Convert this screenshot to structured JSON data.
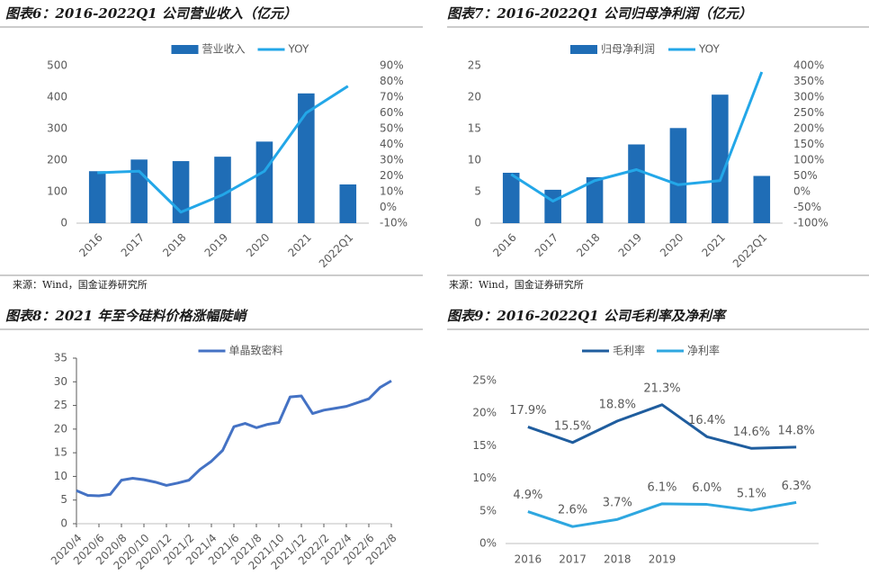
{
  "chart_data": [
    {
      "type": "bar",
      "title": "图表6：2016-2022Q1 公司营业收入（亿元）",
      "source": "来源：Wind，国金证券研究所",
      "categories": [
        "2016",
        "2017",
        "2018",
        "2019",
        "2020",
        "2021",
        "2022Q1"
      ],
      "series": [
        {
          "name": "营业收入",
          "type": "bar",
          "color": "#1f6db6",
          "values": [
            165,
            202,
            197,
            211,
            259,
            412,
            123
          ]
        },
        {
          "name": "YOY",
          "type": "line",
          "axis": "y2",
          "color": "#23a7e8",
          "values": [
            22,
            23,
            -3,
            8,
            23,
            60,
            77
          ]
        }
      ],
      "ylim": [
        0,
        500
      ],
      "yticks": [
        0,
        100,
        200,
        300,
        400,
        500
      ],
      "y2lim": [
        -10,
        90
      ],
      "y2ticks": [
        {
          "value": -10,
          "label": "-10%"
        },
        {
          "value": 0,
          "label": "0%"
        },
        {
          "value": 10,
          "label": "10%"
        },
        {
          "value": 20,
          "label": "20%"
        },
        {
          "value": 30,
          "label": "30%"
        },
        {
          "value": 40,
          "label": "40%"
        },
        {
          "value": 50,
          "label": "50%"
        },
        {
          "value": 60,
          "label": "60%"
        },
        {
          "value": 70,
          "label": "70%"
        },
        {
          "value": 80,
          "label": "80%"
        },
        {
          "value": 90,
          "label": "90%"
        }
      ],
      "grid": false,
      "legend": "top"
    },
    {
      "type": "bar",
      "title": "图表7：2016-2022Q1 公司归母净利润（亿元）",
      "source": "来源：Wind，国金证券研究所",
      "categories": [
        "2016",
        "2017",
        "2018",
        "2019",
        "2020",
        "2021",
        "2022Q1"
      ],
      "series": [
        {
          "name": "归母净利润",
          "type": "bar",
          "color": "#1f6db6",
          "values": [
            8.0,
            5.3,
            7.3,
            12.5,
            15.1,
            20.4,
            7.5
          ]
        },
        {
          "name": "YOY",
          "type": "line",
          "axis": "y2",
          "color": "#23a7e8",
          "values": [
            55,
            -30,
            35,
            70,
            22,
            35,
            380
          ]
        }
      ],
      "ylim": [
        0,
        25
      ],
      "yticks": [
        0,
        5,
        10,
        15,
        20,
        25
      ],
      "y2lim": [
        -100,
        400
      ],
      "y2ticks": [
        {
          "value": -100,
          "label": "-100%"
        },
        {
          "value": -50,
          "label": "-50%"
        },
        {
          "value": 0,
          "label": "0%"
        },
        {
          "value": 50,
          "label": "50%"
        },
        {
          "value": 100,
          "label": "100%"
        },
        {
          "value": 150,
          "label": "150%"
        },
        {
          "value": 200,
          "label": "200%"
        },
        {
          "value": 250,
          "label": "250%"
        },
        {
          "value": 300,
          "label": "300%"
        },
        {
          "value": 350,
          "label": "350%"
        },
        {
          "value": 400,
          "label": "400%"
        }
      ],
      "grid": false,
      "legend": "top"
    },
    {
      "type": "line",
      "title": "图表8：2021 年至今硅料价格涨幅陡峭",
      "categories": [
        "2020/4",
        null,
        "2020/6",
        null,
        "2020/8",
        null,
        "2020/10",
        null,
        "2020/12",
        null,
        "2021/2",
        null,
        "2021/4",
        null,
        "2021/6",
        null,
        "2021/8",
        null,
        "2021/10",
        null,
        "2021/12",
        null,
        "2022/2",
        null,
        "2022/4",
        null,
        "2022/6",
        null,
        "2022/8"
      ],
      "series": [
        {
          "name": "单晶致密料",
          "color": "#4472c4",
          "values": [
            7.0,
            6.0,
            5.9,
            6.2,
            9.2,
            9.6,
            9.3,
            8.8,
            8.1,
            8.6,
            9.2,
            11.5,
            13.2,
            15.5,
            20.5,
            21.2,
            20.3,
            21.0,
            21.4,
            26.8,
            27.0,
            23.3,
            24.0,
            24.4,
            24.8,
            25.6,
            26.4,
            28.8,
            30.2
          ]
        }
      ],
      "ylim": [
        0,
        35
      ],
      "yticks": [
        0,
        5,
        10,
        15,
        20,
        25,
        30,
        35
      ],
      "grid": false,
      "legend": "top"
    },
    {
      "type": "line",
      "title": "图表9：2016-2022Q1 公司毛利率及净利率",
      "categories": [
        "2016",
        "2017",
        "2018",
        "2019",
        null,
        null,
        null
      ],
      "series": [
        {
          "name": "毛利率",
          "color": "#1f5d9e",
          "values": [
            17.9,
            15.5,
            18.8,
            21.3,
            16.4,
            14.6,
            14.8
          ],
          "value_labels": [
            "17.9%",
            "15.5%",
            "18.8%",
            "21.3%",
            "16.4%",
            "14.6%",
            "14.8%"
          ]
        },
        {
          "name": "净利率",
          "color": "#2ea7e0",
          "values": [
            4.9,
            2.6,
            3.7,
            6.1,
            6.0,
            5.1,
            6.3
          ],
          "value_labels": [
            "4.9%",
            "2.6%",
            "3.7%",
            "6.1%",
            "6.0%",
            "5.1%",
            "6.3%"
          ]
        }
      ],
      "ylim": [
        0,
        25
      ],
      "yticks": [
        {
          "value": 0,
          "label": "0%"
        },
        {
          "value": 5,
          "label": "5%"
        },
        {
          "value": 10,
          "label": "10%"
        },
        {
          "value": 15,
          "label": "15%"
        },
        {
          "value": 20,
          "label": "20%"
        },
        {
          "value": 25,
          "label": "25%"
        }
      ],
      "grid": false,
      "legend": "top"
    }
  ]
}
